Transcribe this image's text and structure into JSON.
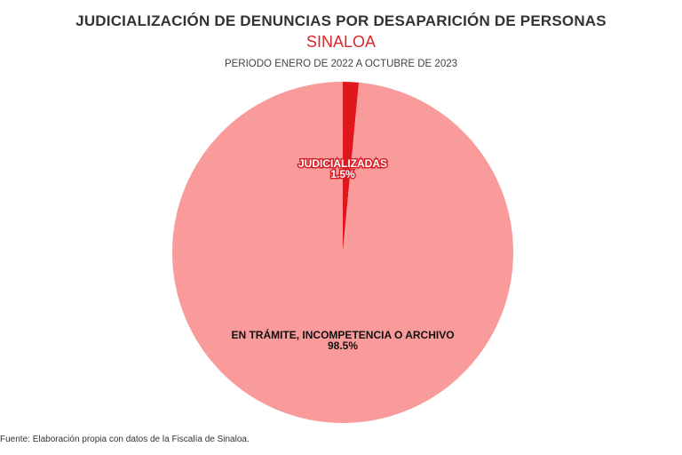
{
  "chart_data": {
    "type": "pie",
    "title": "JUDICIALIZACIÓN DE DENUNCIAS POR DESAPARICIÓN DE PERSONAS",
    "subtitle": "SINALOA",
    "period": "PERIODO ENERO DE 2022 A OCTUBRE DE 2023",
    "source": "Fuente: Elaboración propia con datos de la Fiscalía de Sinaloa.",
    "slices": [
      {
        "label": "JUDICIALIZADAS",
        "value": 1.5,
        "value_label": "1.5%",
        "color": "#e0171d"
      },
      {
        "label": "EN TRÁMITE, INCOMPETENCIA O ARCHIVO",
        "value": 98.5,
        "value_label": "98.5%",
        "color": "#f99b9b"
      }
    ]
  }
}
